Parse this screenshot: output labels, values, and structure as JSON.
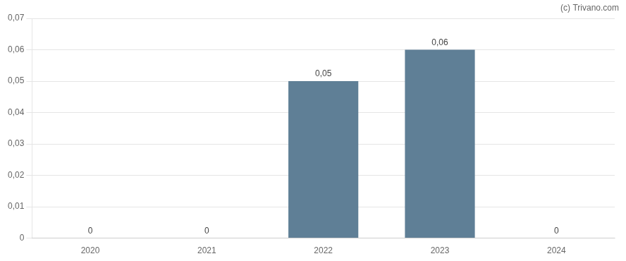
{
  "chart_data": {
    "type": "bar",
    "categories": [
      "2020",
      "2021",
      "2022",
      "2023",
      "2024"
    ],
    "values": [
      0,
      0,
      0.05,
      0.06,
      0
    ],
    "value_labels": [
      "0",
      "0",
      "0,05",
      "0,06",
      "0"
    ],
    "data_labels": true,
    "color": "#5f7f96",
    "ylim": [
      0,
      0.07
    ],
    "yticks": [
      0,
      {
        "value": 0.01,
        "label": "0,01"
      },
      {
        "value": 0.02,
        "label": "0,02"
      },
      {
        "value": 0.03,
        "label": "0,03"
      },
      {
        "value": 0.04,
        "label": "0,04"
      },
      {
        "value": 0.05,
        "label": "0,05"
      },
      {
        "value": 0.06,
        "label": "0,06"
      },
      {
        "value": 0.07,
        "label": "0,07"
      }
    ],
    "grid": true,
    "annotations": [
      "(c) Trivano.com"
    ]
  }
}
